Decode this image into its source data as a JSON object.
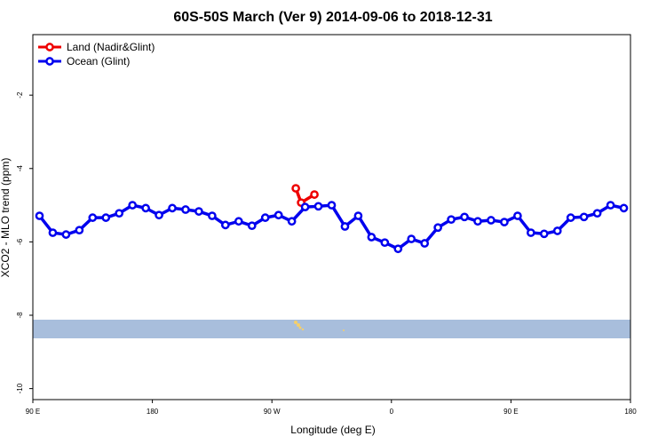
{
  "chart_data": {
    "type": "line",
    "title": "60S-50S March (Ver 9)   2014-09-06 to 2018-12-31",
    "x_label": "Longitude (deg E)",
    "y_label": "XCO2 - MLO trend (ppm)",
    "xlim": [
      90,
      540
    ],
    "ylim": [
      -10.3,
      -0.35
    ],
    "xticks": [
      {
        "value": 90,
        "label": "90 E"
      },
      {
        "value": 180,
        "label": "180"
      },
      {
        "value": 270,
        "label": "90 W"
      },
      {
        "value": 360,
        "label": "0"
      },
      {
        "value": 450,
        "label": "90 E"
      },
      {
        "value": 540,
        "label": "180"
      }
    ],
    "yticks": [
      -2,
      -4,
      -6,
      -8,
      -10
    ],
    "legend": "top-left",
    "series": [
      {
        "name": "Land (Nadir&Glint)",
        "color": "#ee0000",
        "x": [
          288,
          292,
          302
        ],
        "values": [
          -4.54,
          -4.93,
          -4.71
        ]
      },
      {
        "name": "Ocean (Glint)",
        "color": "#0000ee",
        "x": [
          95,
          105,
          115,
          125,
          135,
          145,
          155,
          165,
          175,
          185,
          195,
          205,
          215,
          225,
          235,
          245,
          255,
          265,
          275,
          285,
          295,
          305,
          315,
          325,
          335,
          345,
          355,
          365,
          375,
          385,
          395,
          405,
          415,
          425,
          435,
          445,
          455,
          465,
          475,
          485,
          495,
          505,
          515,
          525,
          535
        ],
        "values": [
          -5.29,
          -5.75,
          -5.8,
          -5.68,
          -5.34,
          -5.34,
          -5.22,
          -5.0,
          -5.08,
          -5.27,
          -5.08,
          -5.12,
          -5.17,
          -5.29,
          -5.54,
          -5.44,
          -5.56,
          -5.34,
          -5.27,
          -5.44,
          -5.05,
          -5.03,
          -5.0,
          -5.58,
          -5.29,
          -5.87,
          -6.02,
          -6.19,
          -5.92,
          -6.04,
          -5.61,
          -5.39,
          -5.32,
          -5.44,
          -5.41,
          -5.46,
          -5.29,
          -5.75,
          -5.78,
          -5.7,
          -5.34,
          -5.32,
          -5.22,
          -5.0,
          -5.08
        ]
      }
    ]
  }
}
